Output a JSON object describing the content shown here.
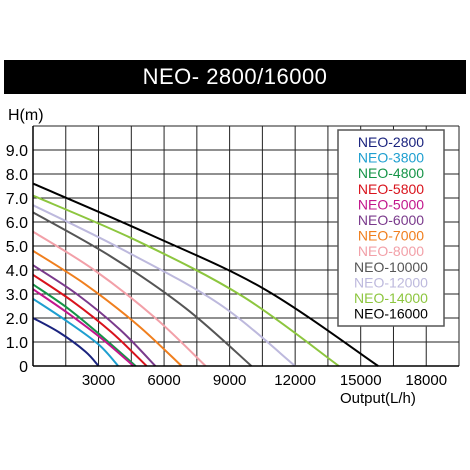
{
  "chart_data": {
    "type": "line",
    "title": "NEO- 2800/16000",
    "ylabel": "H(m)",
    "xlabel": "Output(L/h)",
    "x_ticks": [
      "3000",
      "6000",
      "9000",
      "12000",
      "15000",
      "18000"
    ],
    "y_ticks": [
      "0",
      "1.0",
      "2.0",
      "3.0",
      "4.0",
      "5.0",
      "6.0",
      "7.0",
      "8.0",
      "9.0"
    ],
    "xlim": [
      0,
      19500
    ],
    "ylim": [
      0,
      10
    ],
    "grid": true,
    "legend_position": "top-right",
    "series": [
      {
        "name": "NEO-2800",
        "color": "#1a237e",
        "x": [
          0,
          1200,
          2400,
          3000
        ],
        "y": [
          2.0,
          1.4,
          0.6,
          0
        ]
      },
      {
        "name": "NEO-3800",
        "color": "#1e9fd0",
        "x": [
          0,
          1500,
          3000,
          3900
        ],
        "y": [
          2.8,
          1.9,
          0.9,
          0
        ]
      },
      {
        "name": "NEO-4800",
        "color": "#159447",
        "x": [
          0,
          1600,
          3200,
          4700
        ],
        "y": [
          3.4,
          2.4,
          1.2,
          0
        ]
      },
      {
        "name": "NEO-5800",
        "color": "#d9131c",
        "x": [
          0,
          1800,
          3600,
          5200
        ],
        "y": [
          3.8,
          2.7,
          1.4,
          0
        ]
      },
      {
        "name": "NEO-5000",
        "color": "#c2168c",
        "x": [
          0,
          1600,
          3200,
          4600
        ],
        "y": [
          3.2,
          2.2,
          1.1,
          0
        ]
      },
      {
        "name": "NEO-6000",
        "color": "#7a3a8c",
        "x": [
          0,
          2000,
          4000,
          5600
        ],
        "y": [
          4.2,
          3.0,
          1.5,
          0
        ]
      },
      {
        "name": "NEO-7000",
        "color": "#f07f1e",
        "x": [
          0,
          2400,
          4800,
          6800
        ],
        "y": [
          4.8,
          3.4,
          1.7,
          0
        ]
      },
      {
        "name": "NEO-8000",
        "color": "#f2a0a8",
        "x": [
          0,
          2800,
          5600,
          7900
        ],
        "y": [
          5.6,
          4.0,
          2.0,
          0
        ]
      },
      {
        "name": "NEO-10000",
        "color": "#555555",
        "x": [
          0,
          3500,
          7000,
          10000
        ],
        "y": [
          6.4,
          4.6,
          2.4,
          0
        ]
      },
      {
        "name": "NEO-12000",
        "color": "#bdb9dd",
        "x": [
          0,
          4000,
          8500,
          12000
        ],
        "y": [
          6.7,
          4.9,
          2.6,
          0
        ]
      },
      {
        "name": "NEO-14000",
        "color": "#8dc63f",
        "x": [
          0,
          4800,
          9600,
          14000
        ],
        "y": [
          7.1,
          5.2,
          2.9,
          0
        ]
      },
      {
        "name": "NEO-16000",
        "color": "#000000",
        "x": [
          0,
          5300,
          10600,
          15800
        ],
        "y": [
          7.6,
          5.5,
          3.2,
          0
        ]
      }
    ]
  }
}
